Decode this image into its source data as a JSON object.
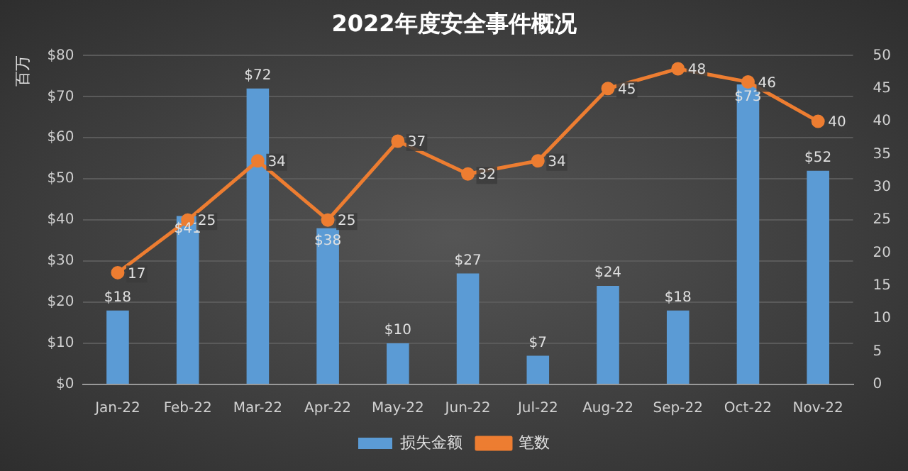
{
  "chart_data": {
    "type": "bar",
    "title": "2022年度安全事件概况",
    "ylabel": "百万",
    "categories": [
      "Jan-22",
      "Feb-22",
      "Mar-22",
      "Apr-22",
      "May-22",
      "Jun-22",
      "Jul-22",
      "Aug-22",
      "Sep-22",
      "Oct-22",
      "Nov-22"
    ],
    "series": [
      {
        "name": "损失金额",
        "color": "#5b9bd5",
        "values": [
          18,
          41,
          72,
          38,
          10,
          27,
          7,
          24,
          18,
          73,
          52
        ],
        "value_labels": [
          "$18",
          "$41",
          "$72",
          "$38",
          "$10",
          "$27",
          "$7",
          "$24",
          "$18",
          "$73",
          "$52"
        ]
      },
      {
        "name": "笔数",
        "type": "line",
        "axis": "y2",
        "color": "#ed7d31",
        "marker": "circle",
        "values": [
          17,
          25,
          34,
          25,
          37,
          32,
          34,
          45,
          48,
          46,
          40
        ],
        "value_labels": [
          "17",
          "25",
          "34",
          "25",
          "37",
          "32",
          "34",
          "45",
          "48",
          "46",
          "40"
        ]
      }
    ],
    "ylim": [
      0,
      80
    ],
    "yticks": [
      {
        "value": 0,
        "label": "$0"
      },
      {
        "value": 10,
        "label": "$10"
      },
      {
        "value": 20,
        "label": "$20"
      },
      {
        "value": 30,
        "label": "$30"
      },
      {
        "value": 40,
        "label": "$40"
      },
      {
        "value": 50,
        "label": "$50"
      },
      {
        "value": 60,
        "label": "$60"
      },
      {
        "value": 70,
        "label": "$70"
      },
      {
        "value": 80,
        "label": "$80"
      }
    ],
    "y2lim": [
      0,
      50
    ],
    "y2ticks": [
      0,
      5,
      10,
      15,
      20,
      25,
      30,
      35,
      40,
      45,
      50
    ],
    "grid": "y",
    "legend": "bottom"
  }
}
